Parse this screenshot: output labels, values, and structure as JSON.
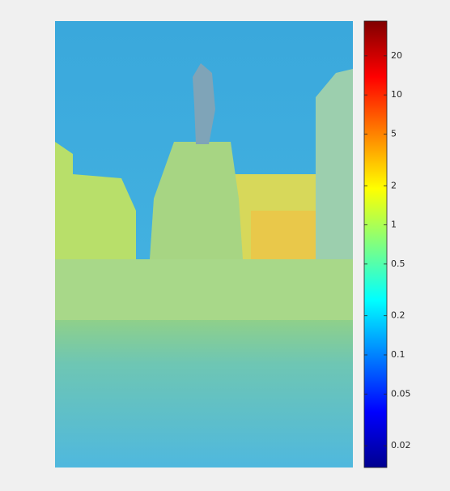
{
  "chart_data": {
    "type": "image-colorbar",
    "colorbar": {
      "scale": "log",
      "lim": [
        0.0136,
        37
      ],
      "ticks": [
        0.02,
        0.05,
        0.1,
        0.2,
        0.5,
        1,
        2,
        5,
        10,
        20
      ],
      "colormap": [
        "#00008f",
        "#0000ff",
        "#0080ff",
        "#00ffff",
        "#80ff80",
        "#ffff00",
        "#ff8000",
        "#ff0000",
        "#800000"
      ]
    }
  }
}
